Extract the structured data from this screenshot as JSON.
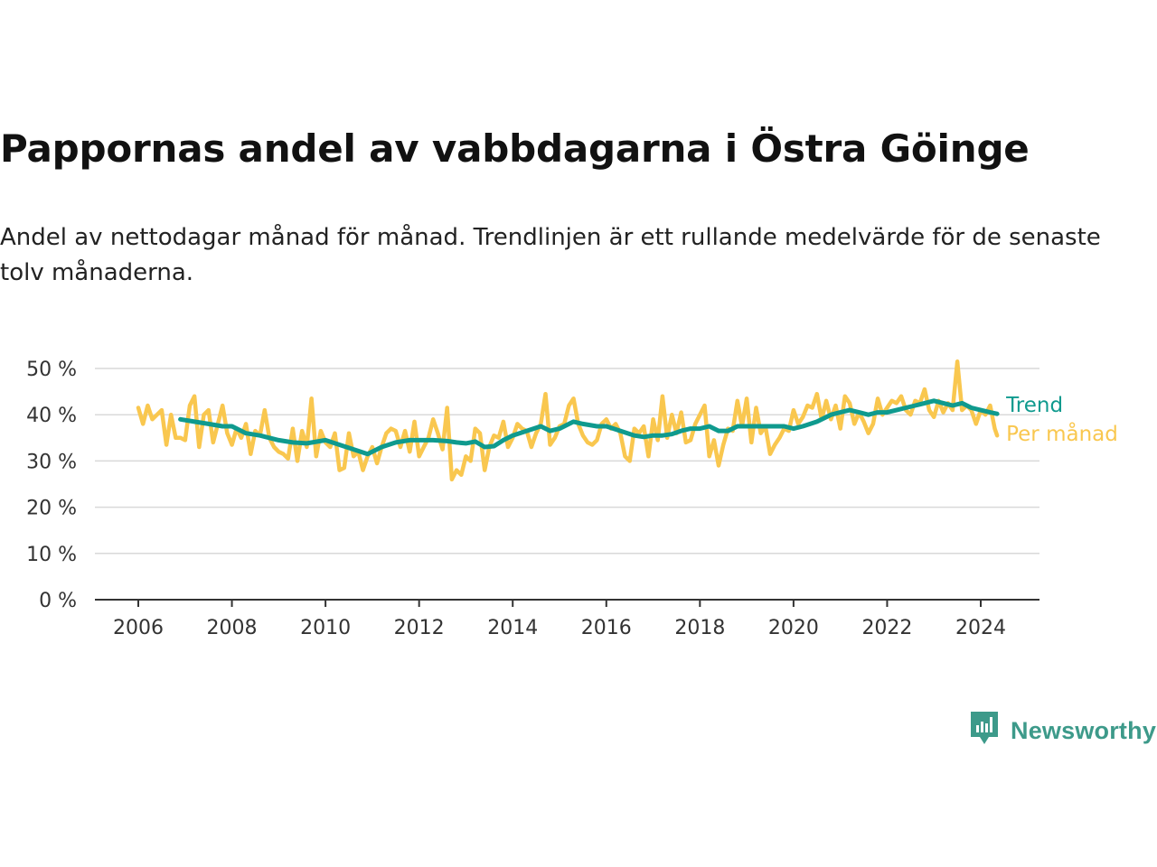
{
  "title": "Pappornas andel av vabbdagarna i Östra Göinge",
  "subtitle": "Andel av nettodagar månad för månad. Trendlinjen är ett rullande medelvärde för de senaste tolv månaderna.",
  "brand": {
    "name": "Newsworthy",
    "icon": "newsworthy-logo-icon",
    "color": "#3d9a8a"
  },
  "colors": {
    "trend": "#0f9a8e",
    "monthly": "#f9c74f",
    "grid": "#d9d9d9",
    "axis": "#333333"
  },
  "chart_data": {
    "type": "line",
    "xlim": [
      2006,
      2024.4
    ],
    "ylim": [
      0,
      50
    ],
    "x_ticks": [
      "2006",
      "2008",
      "2010",
      "2012",
      "2014",
      "2016",
      "2018",
      "2020",
      "2022",
      "2024"
    ],
    "y_ticks": [
      "0 %",
      "10 %",
      "20 %",
      "30 %",
      "40 %",
      "50 %"
    ],
    "grid": true,
    "legend": "end-of-line labels, right",
    "series": [
      {
        "name": "Trend",
        "x": [
          2006.9,
          2007.2,
          2007.5,
          2007.8,
          2008.0,
          2008.3,
          2008.6,
          2009.0,
          2009.3,
          2009.6,
          2010.0,
          2010.3,
          2010.6,
          2010.9,
          2011.2,
          2011.5,
          2011.8,
          2012.0,
          2012.3,
          2012.6,
          2012.8,
          2013.0,
          2013.2,
          2013.4,
          2013.6,
          2013.8,
          2014.0,
          2014.3,
          2014.6,
          2014.8,
          2015.0,
          2015.3,
          2015.5,
          2015.8,
          2016.0,
          2016.3,
          2016.6,
          2016.8,
          2017.0,
          2017.2,
          2017.4,
          2017.6,
          2017.8,
          2018.0,
          2018.2,
          2018.4,
          2018.6,
          2018.8,
          2019.0,
          2019.2,
          2019.5,
          2019.8,
          2020.0,
          2020.2,
          2020.5,
          2020.8,
          2021.0,
          2021.2,
          2021.4,
          2021.6,
          2021.8,
          2022.0,
          2022.2,
          2022.4,
          2022.6,
          2022.8,
          2023.0,
          2023.2,
          2023.4,
          2023.6,
          2023.8,
          2024.0,
          2024.2,
          2024.35
        ],
        "values": [
          39,
          38.5,
          38,
          37.5,
          37.5,
          36,
          35.5,
          34.5,
          34,
          33.8,
          34.5,
          33.5,
          32.5,
          31.5,
          33,
          34,
          34.5,
          34.5,
          34.5,
          34.3,
          34,
          33.8,
          34.2,
          33,
          33.2,
          34.5,
          35.5,
          36.5,
          37.5,
          36.5,
          37,
          38.5,
          38,
          37.5,
          37.5,
          36.5,
          35.5,
          35.2,
          35.5,
          35.5,
          35.8,
          36.5,
          37,
          37,
          37.5,
          36.5,
          36.5,
          37.5,
          37.5,
          37.5,
          37.5,
          37.5,
          37,
          37.5,
          38.5,
          40,
          40.5,
          41,
          40.5,
          40,
          40.5,
          40.5,
          41,
          41.5,
          42,
          42.5,
          43,
          42.5,
          42,
          42.5,
          41.5,
          41,
          40.5,
          40.2
        ]
      },
      {
        "name": "Per månad",
        "x": [
          2006.0,
          2006.1,
          2006.2,
          2006.3,
          2006.4,
          2006.5,
          2006.6,
          2006.7,
          2006.8,
          2006.9,
          2007.0,
          2007.1,
          2007.2,
          2007.3,
          2007.4,
          2007.5,
          2007.6,
          2007.7,
          2007.8,
          2007.9,
          2008.0,
          2008.1,
          2008.2,
          2008.3,
          2008.4,
          2008.5,
          2008.6,
          2008.7,
          2008.8,
          2008.9,
          2009.0,
          2009.1,
          2009.2,
          2009.3,
          2009.4,
          2009.5,
          2009.6,
          2009.7,
          2009.8,
          2009.9,
          2010.0,
          2010.1,
          2010.2,
          2010.3,
          2010.4,
          2010.5,
          2010.6,
          2010.7,
          2010.8,
          2010.9,
          2011.0,
          2011.1,
          2011.2,
          2011.3,
          2011.4,
          2011.5,
          2011.6,
          2011.7,
          2011.8,
          2011.9,
          2012.0,
          2012.1,
          2012.2,
          2012.3,
          2012.4,
          2012.5,
          2012.6,
          2012.7,
          2012.8,
          2012.9,
          2013.0,
          2013.1,
          2013.2,
          2013.3,
          2013.4,
          2013.5,
          2013.6,
          2013.7,
          2013.8,
          2013.9,
          2014.0,
          2014.1,
          2014.2,
          2014.3,
          2014.4,
          2014.5,
          2014.6,
          2014.7,
          2014.8,
          2014.9,
          2015.0,
          2015.1,
          2015.2,
          2015.3,
          2015.4,
          2015.5,
          2015.6,
          2015.7,
          2015.8,
          2015.9,
          2016.0,
          2016.1,
          2016.2,
          2016.3,
          2016.4,
          2016.5,
          2016.6,
          2016.7,
          2016.8,
          2016.9,
          2017.0,
          2017.1,
          2017.2,
          2017.3,
          2017.4,
          2017.5,
          2017.6,
          2017.7,
          2017.8,
          2017.9,
          2018.0,
          2018.1,
          2018.2,
          2018.3,
          2018.4,
          2018.5,
          2018.6,
          2018.7,
          2018.8,
          2018.9,
          2019.0,
          2019.1,
          2019.2,
          2019.3,
          2019.4,
          2019.5,
          2019.6,
          2019.7,
          2019.8,
          2019.9,
          2020.0,
          2020.1,
          2020.2,
          2020.3,
          2020.4,
          2020.5,
          2020.6,
          2020.7,
          2020.8,
          2020.9,
          2021.0,
          2021.1,
          2021.2,
          2021.3,
          2021.4,
          2021.5,
          2021.6,
          2021.7,
          2021.8,
          2021.9,
          2022.0,
          2022.1,
          2022.2,
          2022.3,
          2022.4,
          2022.5,
          2022.6,
          2022.7,
          2022.8,
          2022.9,
          2023.0,
          2023.1,
          2023.2,
          2023.3,
          2023.4,
          2023.5,
          2023.6,
          2023.7,
          2023.8,
          2023.9,
          2024.0,
          2024.1,
          2024.2,
          2024.3,
          2024.35
        ],
        "values": [
          41.5,
          38,
          42,
          39,
          40,
          41,
          33.5,
          40,
          35,
          35,
          34.5,
          42,
          44,
          33,
          40,
          41,
          34,
          38,
          42,
          36,
          33.5,
          37,
          35,
          38,
          31.5,
          36.5,
          35.5,
          41,
          35,
          33,
          32,
          31.5,
          30.5,
          37,
          30,
          36.5,
          33,
          43.5,
          31,
          36.5,
          34,
          33,
          36,
          28,
          28.5,
          36,
          31,
          32,
          28,
          31,
          33,
          29.5,
          33,
          36,
          37,
          36.5,
          33,
          36.5,
          32,
          38.5,
          31,
          33,
          35,
          39,
          36,
          32.5,
          41.5,
          26,
          28,
          27,
          31,
          30,
          37,
          36,
          28,
          33,
          35.5,
          35,
          38.5,
          33,
          35,
          38,
          37,
          36.5,
          33,
          36,
          38,
          44.5,
          33.5,
          35,
          37.5,
          38,
          42,
          43.5,
          38,
          35.5,
          34,
          33.5,
          34.5,
          38,
          39,
          37,
          38,
          36,
          31,
          30,
          37,
          36,
          37.5,
          31,
          39,
          34.5,
          44,
          35,
          40,
          36,
          40.5,
          34,
          34.5,
          38,
          40,
          42,
          31,
          34.5,
          29,
          33.5,
          37,
          36.5,
          43,
          37.5,
          43.5,
          34,
          41.5,
          36,
          37.5,
          31.5,
          33.5,
          35,
          37,
          36.5,
          41,
          38,
          39.5,
          42,
          41.5,
          44.5,
          39,
          43,
          39,
          42,
          37,
          44,
          42.5,
          38,
          40.5,
          38.5,
          36,
          38,
          43.5,
          40,
          41.5,
          43,
          42.5,
          44,
          41,
          40,
          43,
          42.5,
          45.5,
          41,
          39.5,
          43,
          40.5,
          42.5,
          41,
          51.5,
          41,
          42,
          41,
          38,
          41,
          40,
          42,
          37,
          35.5
        ]
      }
    ]
  }
}
